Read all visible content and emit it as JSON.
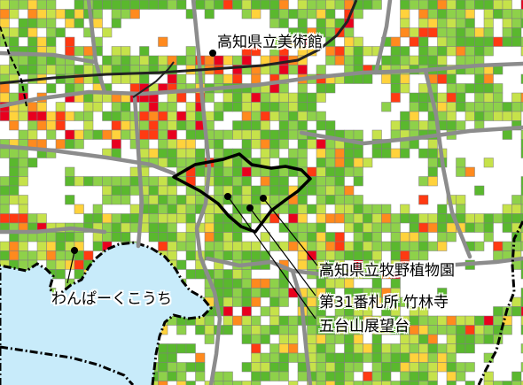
{
  "labels": {
    "museum": "高知県立美術館",
    "botanical_garden": "高知県立牧野植物園",
    "temple": "第31番札所 竹林寺",
    "observatory": "五台山展望台",
    "wanpark": "わんぱーくこうち"
  },
  "colors": {
    "background": "#ffffff",
    "cell_levels": [
      "#5ab82e",
      "#8ed14a",
      "#c6e24a",
      "#ffd23c",
      "#ff8a1e",
      "#ff3a12",
      "#e8001e"
    ],
    "grid_line": "#7f7f7f",
    "road": "#8c8c8c",
    "railway": "#222222",
    "water": "#c8ebfa",
    "boundary": "#000000",
    "poi_dot": "#000000"
  }
}
